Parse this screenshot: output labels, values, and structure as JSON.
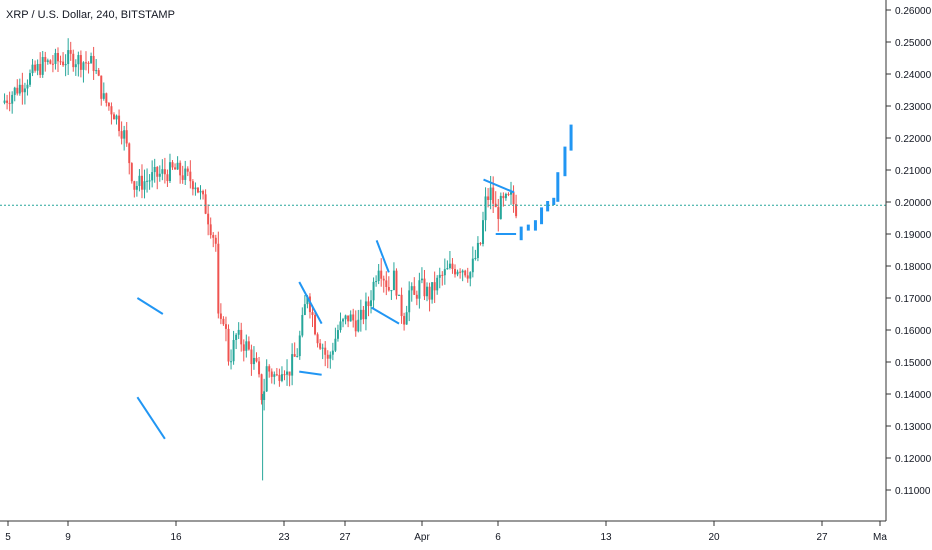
{
  "header": {
    "title": "XRP / U.S. Dollar, 240, BITSTAMP"
  },
  "colors": {
    "up": "#26a69a",
    "down": "#ef5350",
    "pattern": "#2196f3",
    "projection": "#2196f3",
    "price_line": "#26a69a"
  },
  "chart_data": {
    "type": "candlestick",
    "title": "XRP / U.S. Dollar, 240, BITSTAMP",
    "ylim": [
      0.1,
      0.26
    ],
    "y_ticks": [
      "0.11000",
      "0.12000",
      "0.13000",
      "0.14000",
      "0.15000",
      "0.16000",
      "0.17000",
      "0.18000",
      "0.19000",
      "0.20000",
      "0.21000",
      "0.22000",
      "0.23000",
      "0.24000",
      "0.25000",
      "0.26000"
    ],
    "x_ticks": [
      "5",
      "9",
      "16",
      "23",
      "27",
      "Apr",
      "6",
      "13",
      "20",
      "27",
      "Ma"
    ],
    "current_price": 0.199,
    "price_path": [
      [
        0,
        0.231
      ],
      [
        4,
        0.243
      ],
      [
        7,
        0.245
      ],
      [
        9,
        0.243
      ],
      [
        10,
        0.232
      ],
      [
        11,
        0.228
      ],
      [
        12,
        0.221
      ],
      [
        13,
        0.205
      ],
      [
        15,
        0.208
      ],
      [
        17,
        0.21
      ],
      [
        19,
        0.206
      ],
      [
        20,
        0.198
      ],
      [
        21,
        0.187
      ],
      [
        21.3,
        0.158
      ],
      [
        21.8,
        0.165
      ],
      [
        22.3,
        0.15
      ],
      [
        23,
        0.158
      ],
      [
        24,
        0.155
      ],
      [
        25,
        0.148
      ],
      [
        25.6,
        0.138
      ],
      [
        26,
        0.148
      ],
      [
        27,
        0.145
      ],
      [
        27.6,
        0.15
      ],
      [
        28,
        0.146
      ],
      [
        29,
        0.153
      ],
      [
        29.5,
        0.162
      ],
      [
        30,
        0.172
      ],
      [
        30.6,
        0.163
      ],
      [
        31,
        0.158
      ],
      [
        31.5,
        0.155
      ],
      [
        32,
        0.15
      ],
      [
        32.5,
        0.155
      ],
      [
        33,
        0.16
      ],
      [
        34,
        0.164
      ],
      [
        35,
        0.162
      ],
      [
        36,
        0.168
      ],
      [
        37,
        0.181
      ],
      [
        38,
        0.173
      ],
      [
        38.6,
        0.177
      ],
      [
        39,
        0.168
      ],
      [
        39.5,
        0.164
      ],
      [
        40,
        0.172
      ],
      [
        40.5,
        0.17
      ],
      [
        41,
        0.174
      ],
      [
        42,
        0.171
      ],
      [
        43,
        0.176
      ],
      [
        44,
        0.179
      ],
      [
        45,
        0.18
      ],
      [
        46,
        0.178
      ],
      [
        47,
        0.187
      ],
      [
        47.5,
        0.2
      ],
      [
        48,
        0.203
      ],
      [
        48.6,
        0.196
      ],
      [
        49,
        0.199
      ],
      [
        50,
        0.201
      ],
      [
        50.5,
        0.198
      ]
    ],
    "projection": [
      [
        51,
        0.189
      ],
      [
        51.7,
        0.192
      ],
      [
        52.4,
        0.192
      ],
      [
        53,
        0.194
      ],
      [
        53.6,
        0.198
      ],
      [
        54.2,
        0.2
      ],
      [
        54.6,
        0.201
      ],
      [
        55.3,
        0.209
      ],
      [
        55.9,
        0.217
      ]
    ],
    "pattern_lines": [
      [
        [
          13.3,
          0.17
        ],
        [
          15.8,
          0.165
        ]
      ],
      [
        [
          13.3,
          0.139
        ],
        [
          16.0,
          0.126
        ]
      ],
      [
        [
          29.2,
          0.175
        ],
        [
          31.4,
          0.162
        ]
      ],
      [
        [
          29.2,
          0.147
        ],
        [
          31.4,
          0.146
        ]
      ],
      [
        [
          36.8,
          0.188
        ],
        [
          38.0,
          0.178
        ]
      ],
      [
        [
          36.3,
          0.167
        ],
        [
          39.0,
          0.162
        ]
      ],
      [
        [
          47.3,
          0.207
        ],
        [
          50.3,
          0.203
        ]
      ],
      [
        [
          48.5,
          0.19
        ],
        [
          50.5,
          0.19
        ]
      ]
    ],
    "pattern_type": "descending-wedge / flag patterns",
    "grid": false,
    "legend": "none"
  }
}
